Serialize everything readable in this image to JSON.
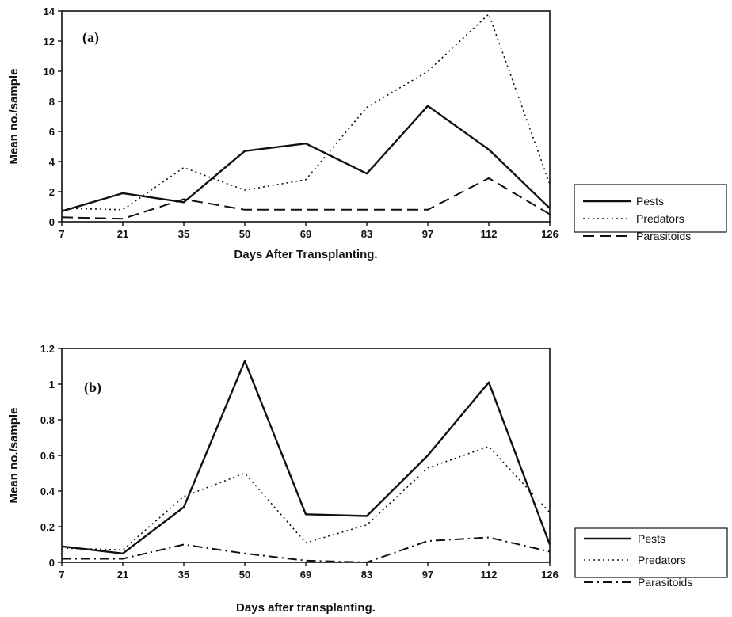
{
  "chart_data": [
    {
      "type": "line",
      "panel_label": "(a)",
      "categories": [
        "7",
        "21",
        "35",
        "50",
        "69",
        "83",
        "97",
        "112",
        "126"
      ],
      "xlabel": "Days After Transplanting.",
      "ylabel": "Mean no./sample",
      "ylim": [
        0,
        14
      ],
      "yticks": [
        "0",
        "2",
        "4",
        "6",
        "8",
        "10",
        "12",
        "14"
      ],
      "grid": false,
      "legend_position": "right",
      "series": [
        {
          "name": "Pests",
          "style": "solid",
          "values": [
            0.7,
            1.9,
            1.3,
            4.7,
            5.2,
            3.2,
            7.7,
            4.8,
            0.9
          ]
        },
        {
          "name": "Predators",
          "style": "dotted",
          "values": [
            0.9,
            0.8,
            3.6,
            2.1,
            2.8,
            7.6,
            10.0,
            13.8,
            2.5
          ]
        },
        {
          "name": "Parasitoids",
          "style": "dashed",
          "values": [
            0.3,
            0.2,
            1.5,
            0.8,
            0.8,
            0.8,
            0.8,
            2.9,
            0.5
          ]
        }
      ]
    },
    {
      "type": "line",
      "panel_label": "(b)",
      "categories": [
        "7",
        "21",
        "35",
        "50",
        "69",
        "83",
        "97",
        "112",
        "126"
      ],
      "xlabel": "Days after transplanting.",
      "ylabel": "Mean no./sample",
      "ylim": [
        0,
        1.2
      ],
      "yticks": [
        "0",
        "0.2",
        "0.4",
        "0.6",
        "0.8",
        "1",
        "1.2"
      ],
      "grid": false,
      "legend_position": "right",
      "series": [
        {
          "name": "Pests",
          "style": "solid",
          "values": [
            0.09,
            0.05,
            0.31,
            1.13,
            0.27,
            0.26,
            0.6,
            1.01,
            0.1
          ]
        },
        {
          "name": "Predators",
          "style": "dotted",
          "values": [
            0.08,
            0.07,
            0.37,
            0.5,
            0.11,
            0.21,
            0.53,
            0.65,
            0.28
          ]
        },
        {
          "name": "Parasitoids",
          "style": "dashdot",
          "values": [
            0.02,
            0.02,
            0.1,
            0.05,
            0.01,
            0.0,
            0.12,
            0.14,
            0.06
          ]
        }
      ]
    }
  ]
}
